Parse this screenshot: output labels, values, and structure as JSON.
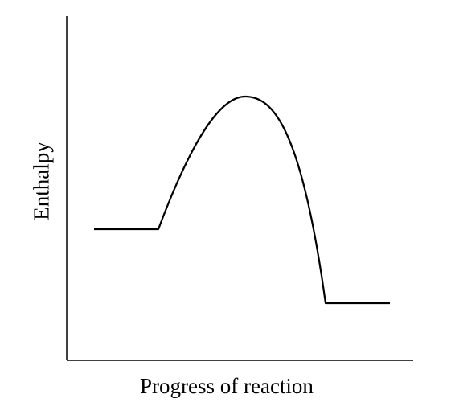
{
  "diagram": {
    "xlabel": "Progress of reaction",
    "ylabel": "Enthalpy",
    "line_color": "#000000",
    "background_color": "#ffffff"
  }
}
